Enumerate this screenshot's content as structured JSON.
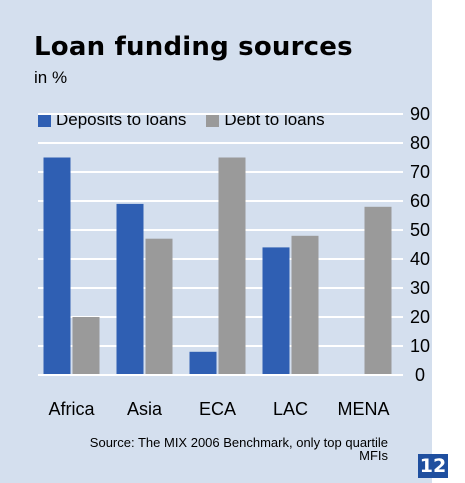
{
  "title": "Loan funding sources",
  "subtitle": "in %",
  "source": "Source: The MIX 2006 Benchmark, only top quartile MFIs",
  "page_number": "12",
  "colors": {
    "background": "#d4dfee",
    "deposits": "#2f5fb3",
    "debt": "#9a9a9a",
    "grid": "#ffffff"
  },
  "chart_data": {
    "type": "bar",
    "categories": [
      "Africa",
      "Asia",
      "ECA",
      "LAC",
      "MENA"
    ],
    "series": [
      {
        "name": "Deposits to loans",
        "values": [
          75,
          59,
          8,
          44,
          null
        ]
      },
      {
        "name": "Debt to loans",
        "values": [
          20,
          47,
          75,
          48,
          58
        ]
      }
    ],
    "ylim": [
      0,
      90
    ],
    "yticks": [
      0,
      10,
      20,
      30,
      40,
      50,
      60,
      70,
      80,
      90
    ],
    "grid": true,
    "legend": "top"
  }
}
